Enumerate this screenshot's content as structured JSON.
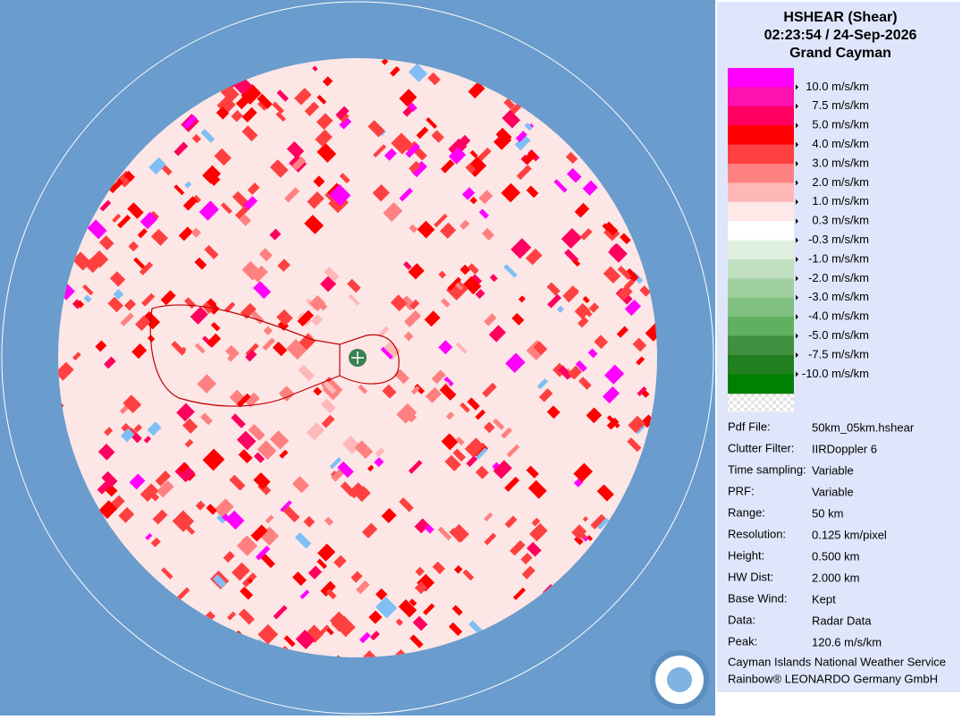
{
  "header": {
    "lines": [
      "HSHEAR (Shear)",
      "02:23:54 / 24-Sep-2026",
      "Grand Cayman"
    ]
  },
  "legend": {
    "colors": [
      "#ff00ff",
      "#ff10b0",
      "#ff0060",
      "#ff0000",
      "#ff4040",
      "#ff8080",
      "#ffb8b8",
      "#ffe8e8",
      "#ffffff",
      "#e0f0e0",
      "#c0e0c0",
      "#a0d0a0",
      "#80c080",
      "#60b060",
      "#409040",
      "#208020",
      "#008000"
    ],
    "labels": [
      "10.0 m/s/km",
      "7.5 m/s/km",
      "5.0 m/s/km",
      "4.0 m/s/km",
      "3.0 m/s/km",
      "2.0 m/s/km",
      "1.0 m/s/km",
      "0.3 m/s/km",
      "-0.3 m/s/km",
      "-1.0 m/s/km",
      "-2.0 m/s/km",
      "-3.0 m/s/km",
      "-4.0 m/s/km",
      "-5.0 m/s/km",
      "-7.5 m/s/km",
      "-10.0 m/s/km"
    ]
  },
  "info": {
    "rows": [
      [
        "Pdf File:",
        "50km_05km.hshear"
      ],
      [
        "Clutter Filter:",
        "IIRDoppler 6"
      ],
      [
        "Time sampling:",
        "Variable"
      ],
      [
        "PRF:",
        "Variable"
      ],
      [
        "Range:",
        "50 km"
      ],
      [
        "Resolution:",
        "0.125 km/pixel"
      ],
      [
        "Height:",
        "0.500 km"
      ],
      [
        "HW Dist:",
        "2.000 km"
      ],
      [
        "Base Wind:",
        "Kept"
      ],
      [
        "Data:",
        "Radar Data"
      ],
      [
        "Peak:",
        "120.6 m/s/km"
      ]
    ]
  },
  "footer": {
    "lines": [
      "Cayman Islands National Weather Service",
      "Rainbow® LEONARDO Germany GmbH"
    ]
  }
}
